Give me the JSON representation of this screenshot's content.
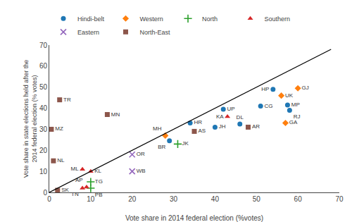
{
  "chart_data": {
    "type": "scatter",
    "xlabel": "Vote share in 2014 federal election (%votes)",
    "ylabel": "Vote share in state elections held after the\n2014 federal election (% votes)",
    "series": [
      {
        "name": "Hindi-belt",
        "marker": "circle",
        "x": [
          34,
          42,
          40,
          46,
          51,
          54,
          57.5,
          58,
          29
        ],
        "values": [
          33,
          39.5,
          31,
          32.5,
          41,
          49,
          41.5,
          39,
          24.5
        ],
        "labels": [
          "HR",
          "UP",
          "JH",
          "DL",
          "CG",
          "HP",
          "MP",
          "RJ",
          "BR"
        ]
      },
      {
        "name": "Western",
        "marker": "diamond",
        "x": [
          60,
          56,
          28,
          57
        ],
        "values": [
          49.5,
          46,
          27,
          33
        ],
        "labels": [
          "GJ",
          "UK",
          "MH",
          "GA"
        ]
      },
      {
        "name": "North",
        "marker": "plus",
        "x": [
          31,
          10,
          10
        ],
        "values": [
          23,
          2,
          5
        ],
        "labels": [
          "JK",
          "PB",
          "TG"
        ]
      },
      {
        "name": "Southern",
        "marker": "triangle-up",
        "x": [
          8,
          9,
          10,
          8,
          43
        ],
        "values": [
          2,
          2.5,
          10,
          11,
          36
        ],
        "labels": [
          "TN",
          "AP",
          "KL",
          "ML",
          "KA"
        ]
      },
      {
        "name": "Eastern",
        "marker": "x",
        "x": [
          20,
          20
        ],
        "values": [
          18,
          10
        ],
        "labels": [
          "OR",
          "WB"
        ]
      },
      {
        "name": "North-East",
        "marker": "square",
        "x": [
          2.5,
          14,
          0.5,
          1,
          2,
          35,
          48
        ],
        "values": [
          44,
          37,
          30,
          15,
          1,
          29,
          31
        ],
        "labels": [
          "TR",
          "MN",
          "MZ",
          "NL",
          "SK",
          "AS",
          "AR"
        ]
      },
      {
        "type": "line",
        "color": "black",
        "line_style": "solid",
        "x": [
          0,
          68
        ],
        "values": [
          0,
          68
        ]
      }
    ],
    "xlim": [
      0,
      70
    ],
    "ylim": [
      0,
      70
    ],
    "xticks": [
      0,
      10,
      20,
      30,
      40,
      50,
      60,
      70
    ],
    "yticks": [
      0,
      10,
      20,
      30,
      40,
      50,
      60,
      70
    ],
    "grid": false,
    "legend": "upper left"
  }
}
